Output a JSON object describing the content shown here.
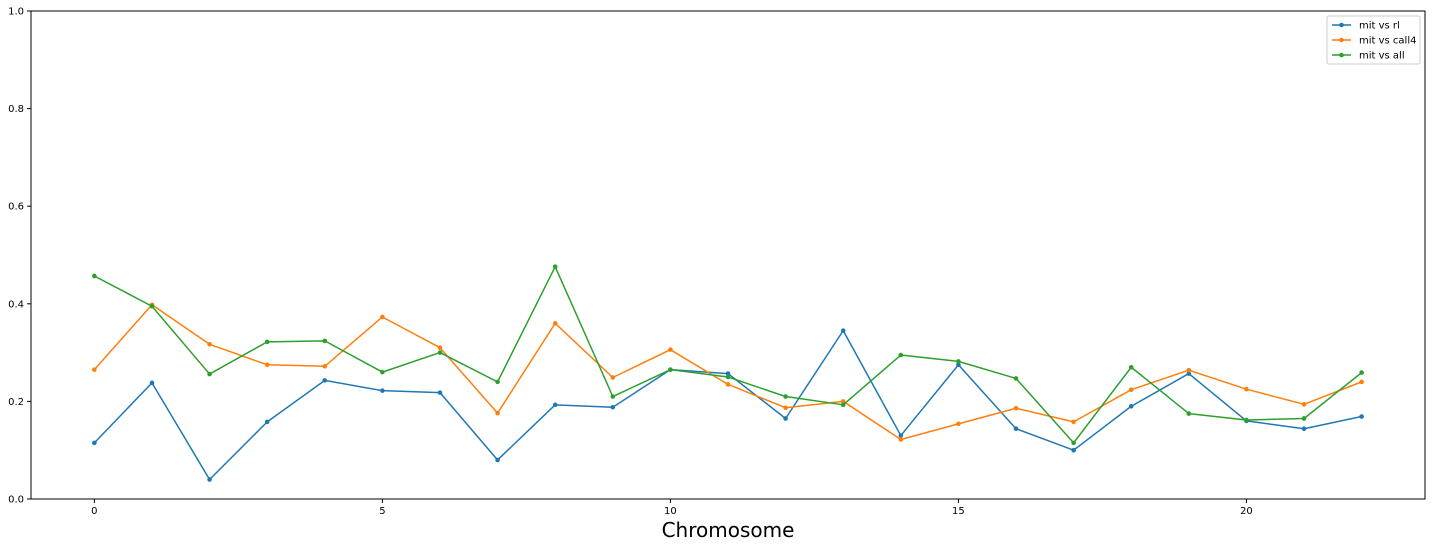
{
  "chart_data": {
    "type": "line",
    "title": "",
    "xlabel": "Chromosome",
    "ylabel": "",
    "xlim": [
      -1.1,
      23.1
    ],
    "ylim": [
      0.0,
      1.0
    ],
    "xticks": [
      0,
      5,
      10,
      15,
      20
    ],
    "yticks": [
      0.0,
      0.2,
      0.4,
      0.6,
      0.8,
      1.0
    ],
    "xtick_labels": [
      "0",
      "5",
      "10",
      "15",
      "20"
    ],
    "ytick_labels": [
      "0.0",
      "0.2",
      "0.4",
      "0.6",
      "0.8",
      "1.0"
    ],
    "grid": false,
    "legend_position": "top-right",
    "x": [
      0,
      1,
      2,
      3,
      4,
      5,
      6,
      7,
      8,
      9,
      10,
      11,
      12,
      13,
      14,
      15,
      16,
      17,
      18,
      19,
      20,
      21,
      22
    ],
    "series": [
      {
        "name": "mit vs rl",
        "color": "#1f77b4",
        "values": [
          0.115,
          0.238,
          0.04,
          0.158,
          0.243,
          0.222,
          0.218,
          0.08,
          0.193,
          0.188,
          0.265,
          0.257,
          0.165,
          0.345,
          0.13,
          0.275,
          0.144,
          0.1,
          0.19,
          0.257,
          0.16,
          0.144,
          0.169
        ]
      },
      {
        "name": "mit vs call4",
        "color": "#ff7f0e",
        "values": [
          0.265,
          0.398,
          0.317,
          0.275,
          0.272,
          0.373,
          0.31,
          0.176,
          0.36,
          0.249,
          0.306,
          0.235,
          0.187,
          0.2,
          0.122,
          0.154,
          0.186,
          0.158,
          0.224,
          0.264,
          0.225,
          0.194,
          0.24
        ]
      },
      {
        "name": "mit vs all",
        "color": "#2ca02c",
        "values": [
          0.457,
          0.395,
          0.256,
          0.322,
          0.324,
          0.26,
          0.3,
          0.24,
          0.476,
          0.21,
          0.265,
          0.25,
          0.21,
          0.193,
          0.295,
          0.282,
          0.247,
          0.115,
          0.27,
          0.175,
          0.162,
          0.165,
          0.259
        ]
      }
    ]
  }
}
